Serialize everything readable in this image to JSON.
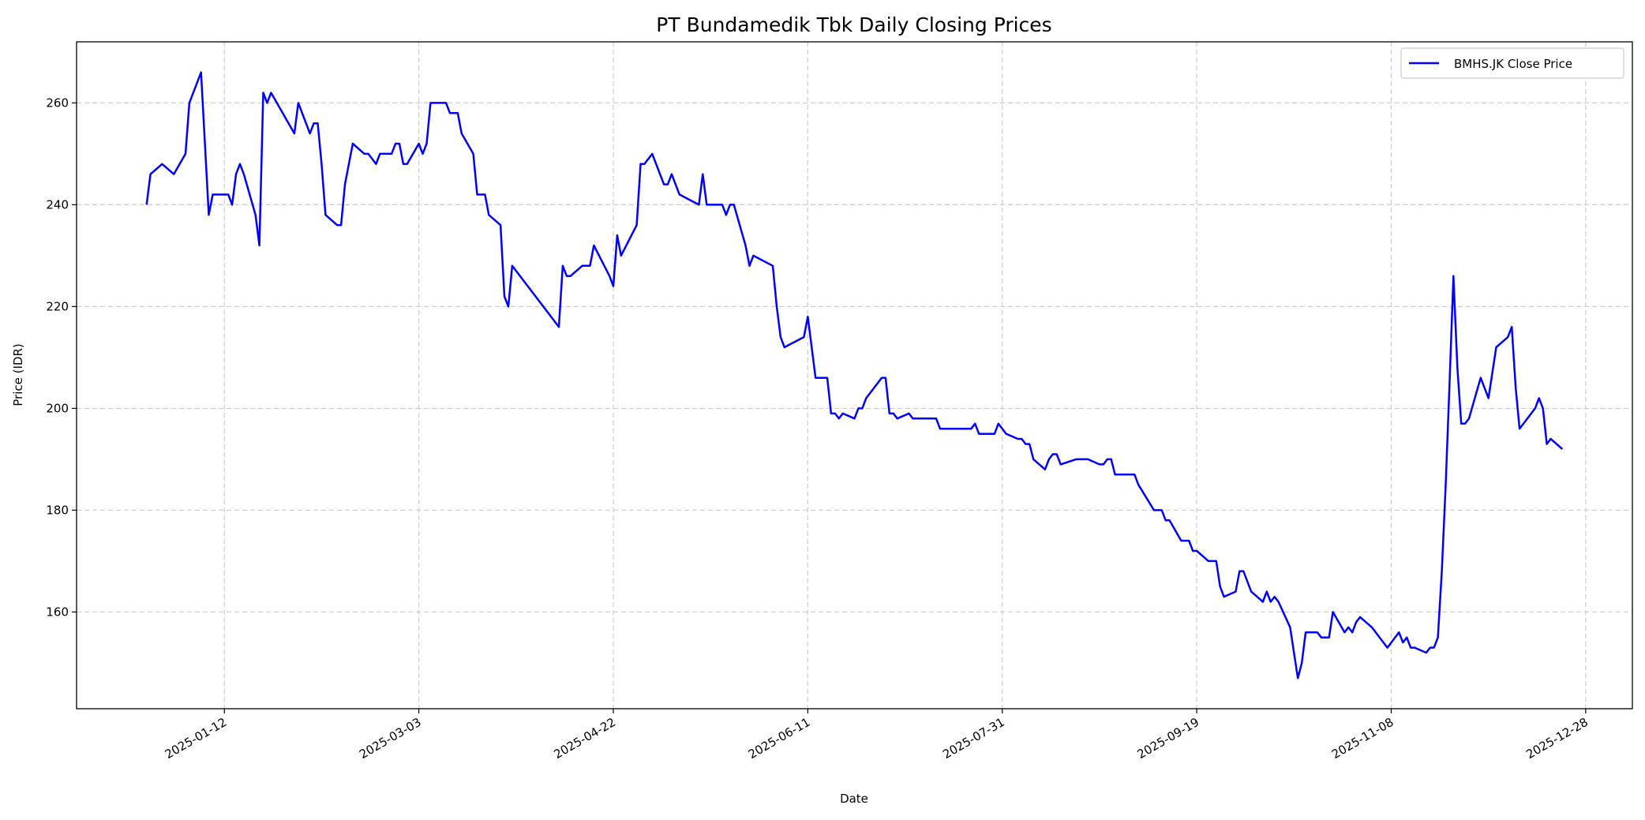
{
  "chart_data": {
    "type": "line",
    "title": "PT Bundamedik Tbk Daily Closing Prices",
    "xlabel": "Date",
    "ylabel": "Price (IDR)",
    "xlim": [
      "2024-12-05",
      "2026-01-09"
    ],
    "ylim": [
      141,
      272
    ],
    "x_ticks": [
      "2025-01-12",
      "2025-03-03",
      "2025-04-22",
      "2025-06-11",
      "2025-07-31",
      "2025-09-19",
      "2025-11-08",
      "2025-12-28"
    ],
    "y_ticks": [
      160,
      180,
      200,
      220,
      240,
      260
    ],
    "grid": true,
    "legend_position": "top-right",
    "series": [
      {
        "name": "BMHS.JK Close Price",
        "color": "#0000ff",
        "points": [
          [
            "2024-12-23",
            240
          ],
          [
            "2024-12-24",
            246
          ],
          [
            "2024-12-27",
            248
          ],
          [
            "2024-12-30",
            246
          ],
          [
            "2025-01-02",
            250
          ],
          [
            "2025-01-03",
            260
          ],
          [
            "2025-01-06",
            266
          ],
          [
            "2025-01-08",
            238
          ],
          [
            "2025-01-09",
            242
          ],
          [
            "2025-01-13",
            242
          ],
          [
            "2025-01-14",
            240
          ],
          [
            "2025-01-15",
            246
          ],
          [
            "2025-01-16",
            248
          ],
          [
            "2025-01-17",
            246
          ],
          [
            "2025-01-20",
            238
          ],
          [
            "2025-01-21",
            232
          ],
          [
            "2025-01-22",
            262
          ],
          [
            "2025-01-23",
            260
          ],
          [
            "2025-01-24",
            262
          ],
          [
            "2025-01-30",
            254
          ],
          [
            "2025-01-31",
            260
          ],
          [
            "2025-02-03",
            254
          ],
          [
            "2025-02-04",
            256
          ],
          [
            "2025-02-05",
            256
          ],
          [
            "2025-02-06",
            248
          ],
          [
            "2025-02-07",
            238
          ],
          [
            "2025-02-10",
            236
          ],
          [
            "2025-02-11",
            236
          ],
          [
            "2025-02-12",
            244
          ],
          [
            "2025-02-14",
            252
          ],
          [
            "2025-02-17",
            250
          ],
          [
            "2025-02-18",
            250
          ],
          [
            "2025-02-20",
            248
          ],
          [
            "2025-02-21",
            250
          ],
          [
            "2025-02-24",
            250
          ],
          [
            "2025-02-25",
            252
          ],
          [
            "2025-02-26",
            252
          ],
          [
            "2025-02-27",
            248
          ],
          [
            "2025-02-28",
            248
          ],
          [
            "2025-03-03",
            252
          ],
          [
            "2025-03-04",
            250
          ],
          [
            "2025-03-05",
            252
          ],
          [
            "2025-03-06",
            260
          ],
          [
            "2025-03-10",
            260
          ],
          [
            "2025-03-11",
            258
          ],
          [
            "2025-03-13",
            258
          ],
          [
            "2025-03-14",
            254
          ],
          [
            "2025-03-17",
            250
          ],
          [
            "2025-03-18",
            242
          ],
          [
            "2025-03-20",
            242
          ],
          [
            "2025-03-21",
            238
          ],
          [
            "2025-03-24",
            236
          ],
          [
            "2025-03-25",
            222
          ],
          [
            "2025-03-26",
            220
          ],
          [
            "2025-03-27",
            228
          ],
          [
            "2025-04-08",
            216
          ],
          [
            "2025-04-09",
            228
          ],
          [
            "2025-04-10",
            226
          ],
          [
            "2025-04-11",
            226
          ],
          [
            "2025-04-14",
            228
          ],
          [
            "2025-04-16",
            228
          ],
          [
            "2025-04-17",
            232
          ],
          [
            "2025-04-21",
            226
          ],
          [
            "2025-04-22",
            224
          ],
          [
            "2025-04-23",
            234
          ],
          [
            "2025-04-24",
            230
          ],
          [
            "2025-04-28",
            236
          ],
          [
            "2025-04-29",
            248
          ],
          [
            "2025-04-30",
            248
          ],
          [
            "2025-05-02",
            250
          ],
          [
            "2025-05-05",
            244
          ],
          [
            "2025-05-06",
            244
          ],
          [
            "2025-05-07",
            246
          ],
          [
            "2025-05-09",
            242
          ],
          [
            "2025-05-14",
            240
          ],
          [
            "2025-05-15",
            246
          ],
          [
            "2025-05-16",
            240
          ],
          [
            "2025-05-20",
            240
          ],
          [
            "2025-05-21",
            238
          ],
          [
            "2025-05-22",
            240
          ],
          [
            "2025-05-23",
            240
          ],
          [
            "2025-05-26",
            232
          ],
          [
            "2025-05-27",
            228
          ],
          [
            "2025-05-28",
            230
          ],
          [
            "2025-06-02",
            228
          ],
          [
            "2025-06-03",
            220
          ],
          [
            "2025-06-04",
            214
          ],
          [
            "2025-06-05",
            212
          ],
          [
            "2025-06-10",
            214
          ],
          [
            "2025-06-11",
            218
          ],
          [
            "2025-06-13",
            206
          ],
          [
            "2025-06-16",
            206
          ],
          [
            "2025-06-17",
            199
          ],
          [
            "2025-06-18",
            199
          ],
          [
            "2025-06-19",
            198
          ],
          [
            "2025-06-20",
            199
          ],
          [
            "2025-06-23",
            198
          ],
          [
            "2025-06-24",
            200
          ],
          [
            "2025-06-25",
            200
          ],
          [
            "2025-06-26",
            202
          ],
          [
            "2025-06-30",
            206
          ],
          [
            "2025-07-01",
            206
          ],
          [
            "2025-07-02",
            199
          ],
          [
            "2025-07-03",
            199
          ],
          [
            "2025-07-04",
            198
          ],
          [
            "2025-07-07",
            199
          ],
          [
            "2025-07-08",
            198
          ],
          [
            "2025-07-14",
            198
          ],
          [
            "2025-07-15",
            196
          ],
          [
            "2025-07-23",
            196
          ],
          [
            "2025-07-24",
            197
          ],
          [
            "2025-07-25",
            195
          ],
          [
            "2025-07-29",
            195
          ],
          [
            "2025-07-30",
            197
          ],
          [
            "2025-08-01",
            195
          ],
          [
            "2025-08-04",
            194
          ],
          [
            "2025-08-05",
            194
          ],
          [
            "2025-08-06",
            193
          ],
          [
            "2025-08-07",
            193
          ],
          [
            "2025-08-08",
            190
          ],
          [
            "2025-08-11",
            188
          ],
          [
            "2025-08-12",
            190
          ],
          [
            "2025-08-13",
            191
          ],
          [
            "2025-08-14",
            191
          ],
          [
            "2025-08-15",
            189
          ],
          [
            "2025-08-19",
            190
          ],
          [
            "2025-08-22",
            190
          ],
          [
            "2025-08-25",
            189
          ],
          [
            "2025-08-26",
            189
          ],
          [
            "2025-08-27",
            190
          ],
          [
            "2025-08-28",
            190
          ],
          [
            "2025-08-29",
            187
          ],
          [
            "2025-09-03",
            187
          ],
          [
            "2025-09-04",
            185
          ],
          [
            "2025-09-08",
            180
          ],
          [
            "2025-09-10",
            180
          ],
          [
            "2025-09-11",
            178
          ],
          [
            "2025-09-12",
            178
          ],
          [
            "2025-09-15",
            174
          ],
          [
            "2025-09-17",
            174
          ],
          [
            "2025-09-18",
            172
          ],
          [
            "2025-09-19",
            172
          ],
          [
            "2025-09-22",
            170
          ],
          [
            "2025-09-24",
            170
          ],
          [
            "2025-09-25",
            165
          ],
          [
            "2025-09-26",
            163
          ],
          [
            "2025-09-29",
            164
          ],
          [
            "2025-09-30",
            168
          ],
          [
            "2025-10-01",
            168
          ],
          [
            "2025-10-03",
            164
          ],
          [
            "2025-10-06",
            162
          ],
          [
            "2025-10-07",
            164
          ],
          [
            "2025-10-08",
            162
          ],
          [
            "2025-10-09",
            163
          ],
          [
            "2025-10-10",
            162
          ],
          [
            "2025-10-13",
            157
          ],
          [
            "2025-10-15",
            147
          ],
          [
            "2025-10-16",
            150
          ],
          [
            "2025-10-17",
            156
          ],
          [
            "2025-10-20",
            156
          ],
          [
            "2025-10-21",
            155
          ],
          [
            "2025-10-23",
            155
          ],
          [
            "2025-10-24",
            160
          ],
          [
            "2025-10-27",
            156
          ],
          [
            "2025-10-28",
            157
          ],
          [
            "2025-10-29",
            156
          ],
          [
            "2025-10-30",
            158
          ],
          [
            "2025-10-31",
            159
          ],
          [
            "2025-11-03",
            157
          ],
          [
            "2025-11-07",
            153
          ],
          [
            "2025-11-10",
            156
          ],
          [
            "2025-11-11",
            154
          ],
          [
            "2025-11-12",
            155
          ],
          [
            "2025-11-13",
            153
          ],
          [
            "2025-11-14",
            153
          ],
          [
            "2025-11-17",
            152
          ],
          [
            "2025-11-18",
            153
          ],
          [
            "2025-11-19",
            153
          ],
          [
            "2025-11-20",
            155
          ],
          [
            "2025-11-21",
            168
          ],
          [
            "2025-11-22",
            185
          ],
          [
            "2025-11-23",
            205
          ],
          [
            "2025-11-24",
            226
          ],
          [
            "2025-11-25",
            208
          ],
          [
            "2025-11-26",
            197
          ],
          [
            "2025-11-27",
            197
          ],
          [
            "2025-11-28",
            198
          ],
          [
            "2025-12-01",
            206
          ],
          [
            "2025-12-03",
            202
          ],
          [
            "2025-12-05",
            212
          ],
          [
            "2025-12-08",
            214
          ],
          [
            "2025-12-09",
            216
          ],
          [
            "2025-12-10",
            204
          ],
          [
            "2025-12-11",
            196
          ],
          [
            "2025-12-15",
            200
          ],
          [
            "2025-12-16",
            202
          ],
          [
            "2025-12-17",
            200
          ],
          [
            "2025-12-18",
            193
          ],
          [
            "2025-12-19",
            194
          ],
          [
            "2025-12-22",
            192
          ]
        ]
      }
    ]
  }
}
